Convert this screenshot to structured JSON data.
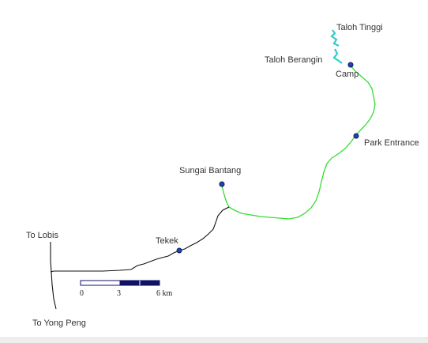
{
  "map": {
    "colors": {
      "green_trail": "#33dd33",
      "black_road": "#111111",
      "river": "#33cccc",
      "poi_fill": "#2244aa",
      "scale_dark": "#111166"
    },
    "labels": {
      "taloh_tinggi": "Taloh Tinggi",
      "taloh_berangin": "Taloh Berangin",
      "camp": "Camp",
      "park_entrance": "Park Entrance",
      "sungai_bantang": "Sungai Bantang",
      "tekek": "Tekek",
      "to_lobis": "To Lobis",
      "to_yong_peng": "To Yong Peng"
    },
    "scale_bar": {
      "tick_0": "0",
      "tick_3": "3",
      "tick_6": "6 km"
    }
  }
}
